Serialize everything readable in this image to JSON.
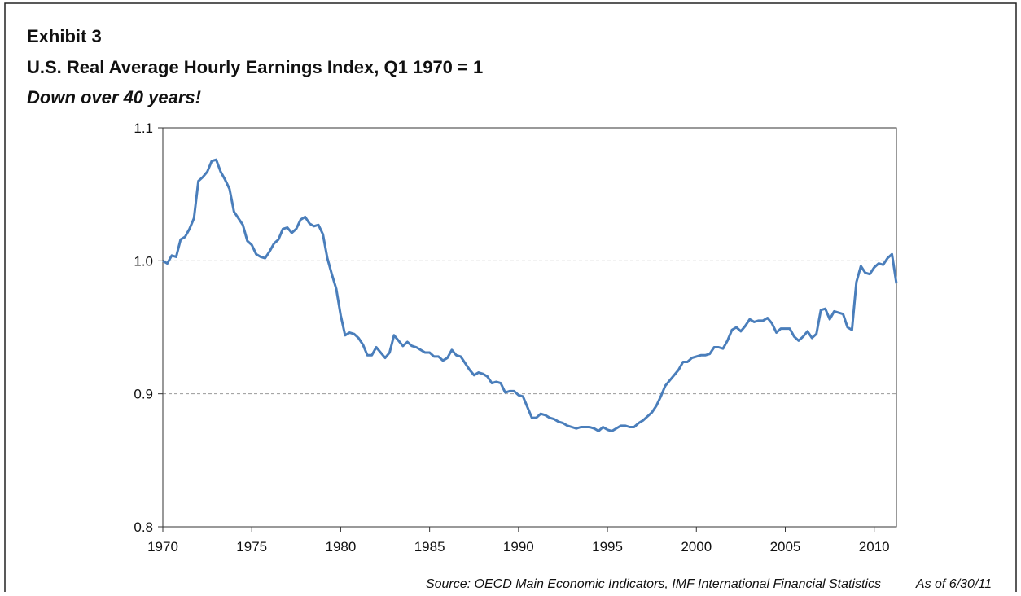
{
  "chart_data": {
    "type": "line",
    "exhibit": "Exhibit 3",
    "title": "U.S. Real Average Hourly Earnings Index, Q1 1970 = 1",
    "subtitle": "Down over 40 years!",
    "source": "Source:  OECD Main Economic Indicators, IMF International Financial Statistics",
    "as_of": "As of 6/30/11",
    "xlim": [
      1970,
      2011.25
    ],
    "xticks": [
      1970,
      1975,
      1980,
      1985,
      1990,
      1995,
      2000,
      2005,
      2010
    ],
    "ylim": [
      0.8,
      1.1
    ],
    "yticks": [
      0.8,
      0.9,
      {
        "value": 1,
        "label": "1.0"
      },
      1.1
    ],
    "grid": true,
    "x": [
      1970,
      1970.25,
      1970.5,
      1970.75,
      1971,
      1971.25,
      1971.5,
      1971.75,
      1972,
      1972.25,
      1972.5,
      1972.75,
      1973,
      1973.25,
      1973.5,
      1973.75,
      1974,
      1974.25,
      1974.5,
      1974.75,
      1975,
      1975.25,
      1975.5,
      1975.75,
      1976,
      1976.25,
      1976.5,
      1976.75,
      1977,
      1977.25,
      1977.5,
      1977.75,
      1978,
      1978.25,
      1978.5,
      1978.75,
      1979,
      1979.25,
      1979.5,
      1979.75,
      1980,
      1980.25,
      1980.5,
      1980.75,
      1981,
      1981.25,
      1981.5,
      1981.75,
      1982,
      1982.25,
      1982.5,
      1982.75,
      1983,
      1983.25,
      1983.5,
      1983.75,
      1984,
      1984.25,
      1984.5,
      1984.75,
      1985,
      1985.25,
      1985.5,
      1985.75,
      1986,
      1986.25,
      1986.5,
      1986.75,
      1987,
      1987.25,
      1987.5,
      1987.75,
      1988,
      1988.25,
      1988.5,
      1988.75,
      1989,
      1989.25,
      1989.5,
      1989.75,
      1990,
      1990.25,
      1990.5,
      1990.75,
      1991,
      1991.25,
      1991.5,
      1991.75,
      1992,
      1992.25,
      1992.5,
      1992.75,
      1993,
      1993.25,
      1993.5,
      1993.75,
      1994,
      1994.25,
      1994.5,
      1994.75,
      1995,
      1995.25,
      1995.5,
      1995.75,
      1996,
      1996.25,
      1996.5,
      1996.75,
      1997,
      1997.25,
      1997.5,
      1997.75,
      1998,
      1998.25,
      1998.5,
      1998.75,
      1999,
      1999.25,
      1999.5,
      1999.75,
      2000,
      2000.25,
      2000.5,
      2000.75,
      2001,
      2001.25,
      2001.5,
      2001.75,
      2002,
      2002.25,
      2002.5,
      2002.75,
      2003,
      2003.25,
      2003.5,
      2003.75,
      2004,
      2004.25,
      2004.5,
      2004.75,
      2005,
      2005.25,
      2005.5,
      2005.75,
      2006,
      2006.25,
      2006.5,
      2006.75,
      2007,
      2007.25,
      2007.5,
      2007.75,
      2008,
      2008.25,
      2008.5,
      2008.75,
      2009,
      2009.25,
      2009.5,
      2009.75,
      2010,
      2010.25,
      2010.5,
      2010.75,
      2011,
      2011.25
    ],
    "series": [
      {
        "color": "#4a7ebb",
        "values": [
          1.0,
          0.998,
          1.004,
          1.003,
          1.016,
          1.018,
          1.024,
          1.032,
          1.06,
          1.063,
          1.067,
          1.075,
          1.076,
          1.067,
          1.061,
          1.054,
          1.037,
          1.032,
          1.027,
          1.015,
          1.012,
          1.005,
          1.003,
          1.002,
          1.007,
          1.013,
          1.016,
          1.024,
          1.025,
          1.021,
          1.024,
          1.031,
          1.033,
          1.028,
          1.026,
          1.027,
          1.02,
          1.002,
          0.99,
          0.979,
          0.959,
          0.944,
          0.946,
          0.945,
          0.942,
          0.937,
          0.929,
          0.929,
          0.935,
          0.931,
          0.927,
          0.931,
          0.944,
          0.94,
          0.936,
          0.939,
          0.936,
          0.935,
          0.933,
          0.931,
          0.931,
          0.928,
          0.928,
          0.925,
          0.927,
          0.933,
          0.929,
          0.928,
          0.923,
          0.918,
          0.914,
          0.916,
          0.915,
          0.913,
          0.908,
          0.909,
          0.908,
          0.901,
          0.902,
          0.902,
          0.899,
          0.898,
          0.89,
          0.882,
          0.882,
          0.885,
          0.884,
          0.882,
          0.881,
          0.879,
          0.878,
          0.876,
          0.875,
          0.874,
          0.875,
          0.875,
          0.875,
          0.874,
          0.872,
          0.875,
          0.873,
          0.872,
          0.874,
          0.876,
          0.876,
          0.875,
          0.875,
          0.878,
          0.88,
          0.883,
          0.886,
          0.891,
          0.898,
          0.906,
          0.91,
          0.914,
          0.918,
          0.924,
          0.924,
          0.927,
          0.928,
          0.929,
          0.929,
          0.93,
          0.935,
          0.935,
          0.934,
          0.94,
          0.948,
          0.95,
          0.947,
          0.951,
          0.956,
          0.954,
          0.955,
          0.955,
          0.957,
          0.953,
          0.946,
          0.949,
          0.949,
          0.949,
          0.943,
          0.94,
          0.943,
          0.947,
          0.942,
          0.945,
          0.963,
          0.964,
          0.956,
          0.962,
          0.961,
          0.96,
          0.95,
          0.948,
          0.984,
          0.996,
          0.991,
          0.99,
          0.995,
          0.998,
          0.997,
          1.002,
          1.005,
          0.983
        ]
      }
    ]
  }
}
